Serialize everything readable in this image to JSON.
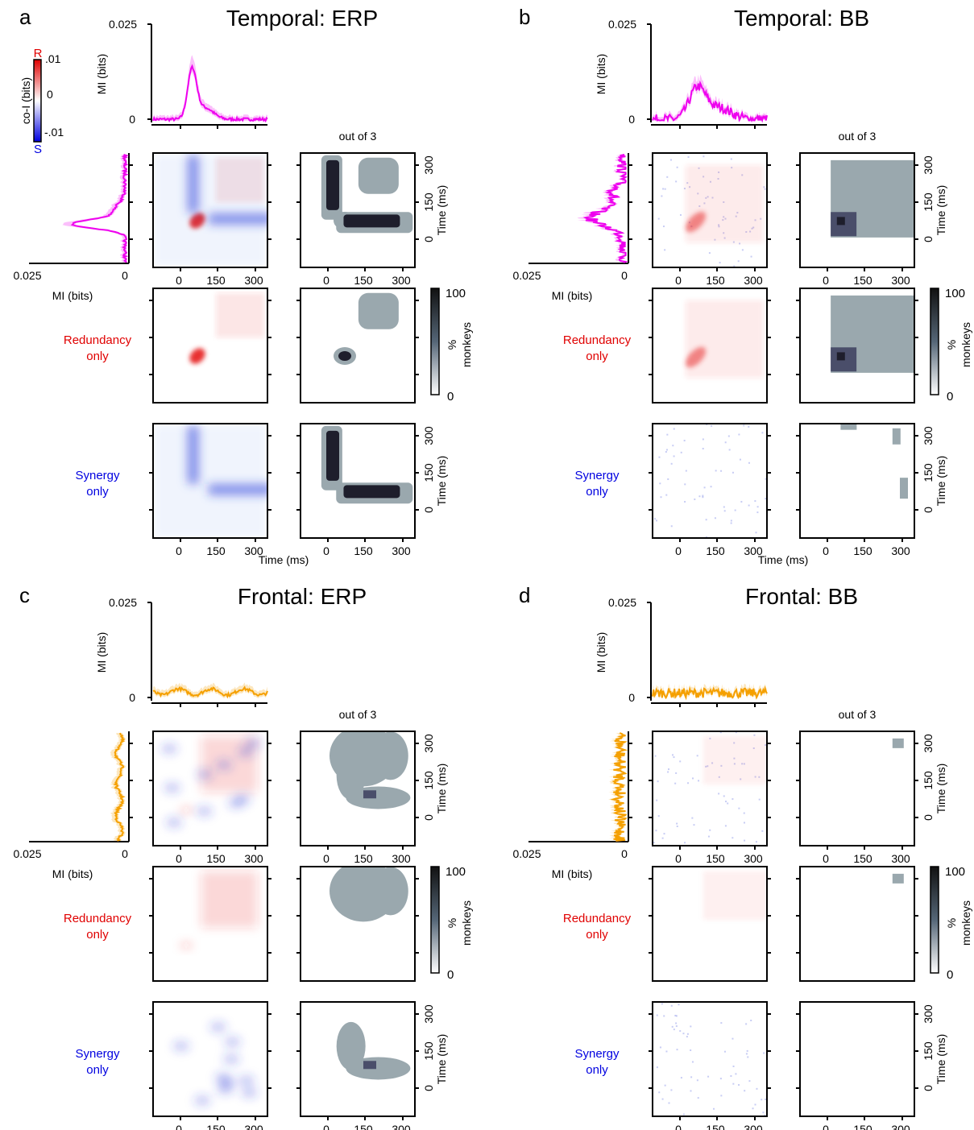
{
  "panels": [
    {
      "letter": "a",
      "title": "Temporal: ERP",
      "color": "#ee00ee",
      "ytick_top": "0.025",
      "ytick_bottom": "0",
      "mi_ylabel": "MI (bits)",
      "mi_xlabel": "MI (bits)",
      "mi_xtick_left": "0.025",
      "mi_xtick_right": "0",
      "out_of": "out of 3",
      "redundancy_label": [
        "Redundancy",
        "only"
      ],
      "synergy_label": [
        "Synergy",
        "only"
      ],
      "time_ticks": [
        "0",
        "150",
        "300"
      ],
      "time_label": "Time (ms)",
      "pattern": "erp_t",
      "noise": false
    },
    {
      "letter": "b",
      "title": "Temporal: BB",
      "color": "#ee00ee",
      "ytick_top": "0.025",
      "ytick_bottom": "0",
      "mi_ylabel": "MI (bits)",
      "mi_xlabel": "MI (bits)",
      "mi_xtick_left": "0.025",
      "mi_xtick_right": "0",
      "out_of": "out of 3",
      "redundancy_label": [
        "Redundancy",
        "only"
      ],
      "synergy_label": [
        "Synergy",
        "only"
      ],
      "time_ticks": [
        "0",
        "150",
        "300"
      ],
      "time_label": "Time (ms)",
      "pattern": "bb_t",
      "noise": true
    },
    {
      "letter": "c",
      "title": "Frontal: ERP",
      "color": "#f5a000",
      "ytick_top": "0.025",
      "ytick_bottom": "0",
      "mi_ylabel": "MI (bits)",
      "mi_xlabel": "MI (bits)",
      "mi_xtick_left": "0.025",
      "mi_xtick_right": "0",
      "out_of": "out of 3",
      "redundancy_label": [
        "Redundancy",
        "only"
      ],
      "synergy_label": [
        "Synergy",
        "only"
      ],
      "time_ticks": [
        "0",
        "150",
        "300"
      ],
      "time_label": "Time (ms)",
      "pattern": "erp_f",
      "noise": false
    },
    {
      "letter": "d",
      "title": "Frontal: BB",
      "color": "#f5a000",
      "ytick_top": "0.025",
      "ytick_bottom": "0",
      "mi_ylabel": "MI (bits)",
      "mi_xlabel": "MI (bits)",
      "mi_xtick_left": "0.025",
      "mi_xtick_right": "0",
      "out_of": "out of 3",
      "redundancy_label": [
        "Redundancy",
        "only"
      ],
      "synergy_label": [
        "Synergy",
        "only"
      ],
      "time_ticks": [
        "0",
        "150",
        "300"
      ],
      "time_label": "Time (ms)",
      "pattern": "bb_f",
      "noise": true
    }
  ],
  "colorbar_coi": {
    "label": "co-I (bits)",
    "top_letter": "R",
    "bottom_letter": "S",
    "ticks": [
      ".01",
      "0",
      "-.01"
    ],
    "top_color": "#e00000",
    "bottom_color": "#0000e0"
  },
  "colorbar_monkeys": {
    "ticks": [
      "100",
      "0"
    ],
    "mid": "%",
    "label": "monkeys"
  },
  "colors": {
    "redundancy_text": "#e00000",
    "synergy_text": "#0000e0"
  }
}
